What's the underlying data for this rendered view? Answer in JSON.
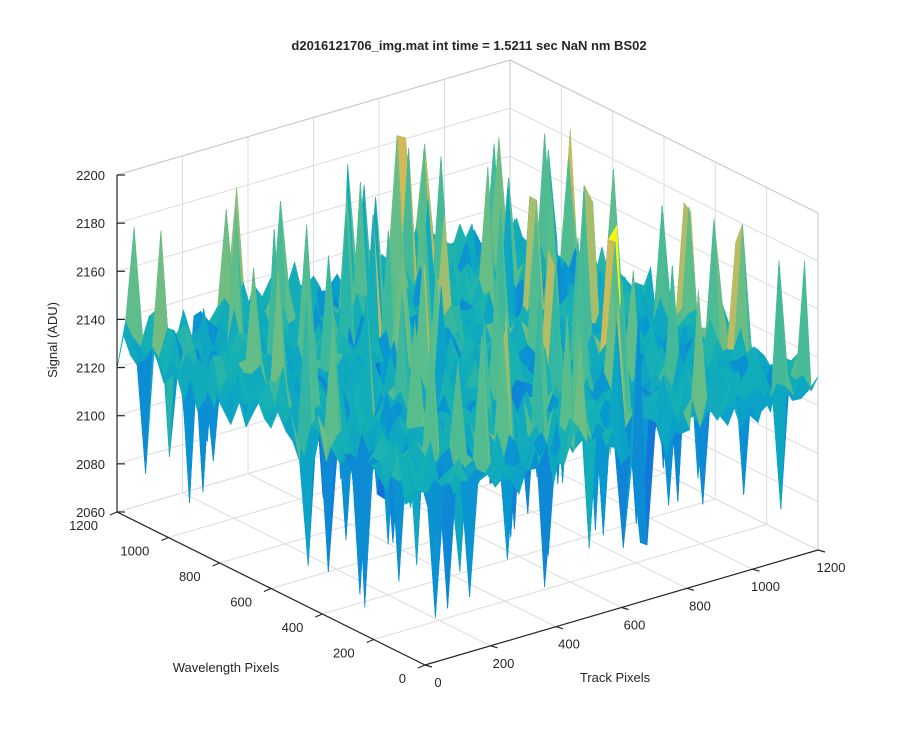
{
  "chart_data": {
    "type": "surface",
    "title": "d2016121706_img.mat int time = 1.5211 sec  NaN nm BS02",
    "xlabel": "Track Pixels",
    "ylabel": "Wavelength Pixels",
    "zlabel": "Signal (ADU)",
    "xlim": [
      0,
      1200
    ],
    "ylim": [
      0,
      1200
    ],
    "zlim": [
      2060,
      2200
    ],
    "xticks": [
      0,
      200,
      400,
      600,
      800,
      1000,
      1200
    ],
    "yticks": [
      0,
      200,
      400,
      600,
      800,
      1000,
      1200
    ],
    "zticks": [
      2060,
      2080,
      2100,
      2120,
      2140,
      2160,
      2180,
      2200
    ],
    "grid": true,
    "colormap": "parula",
    "colors": {
      "low": "#0072bd",
      "mid": "#5cbf9b",
      "high": "#eec44a"
    },
    "surface_summary": {
      "mean_signal": 2130,
      "typical_range": [
        2095,
        2170
      ],
      "min_spike": 2070,
      "max_spike": 2185
    }
  }
}
